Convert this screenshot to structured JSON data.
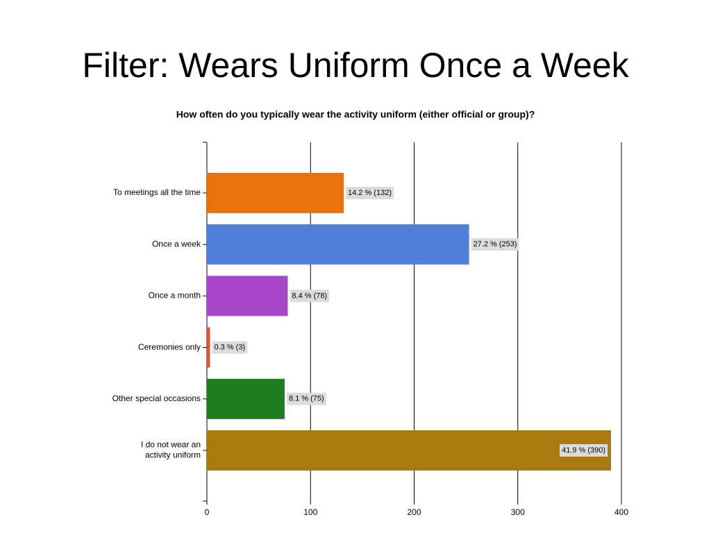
{
  "slide": {
    "title": "Filter: Wears Uniform Once a Week"
  },
  "chart_data": {
    "type": "hbar",
    "title": "How often do you typically wear the activity uniform (either official or group)?",
    "categories": [
      "To meetings all the time",
      "Once a week",
      "Once a month",
      "Ceremonies only",
      "Other special occasions",
      "I do not wear an\nactivity uniform"
    ],
    "values": [
      132,
      253,
      78,
      3,
      75,
      390
    ],
    "value_labels": [
      "14.2 % (132)",
      "27.2 % (253)",
      "8.4 % (78)",
      "0.3 % (3)",
      "8.1 % (75)",
      "41.9 % (390)"
    ],
    "colors": [
      "#e8720c",
      "#4f7fd9",
      "#a845c9",
      "#d9553a",
      "#1e7d1e",
      "#a97a10"
    ],
    "xlim": [
      0,
      400
    ],
    "xticks": [
      0,
      100,
      200,
      300,
      400
    ],
    "grid": true
  }
}
